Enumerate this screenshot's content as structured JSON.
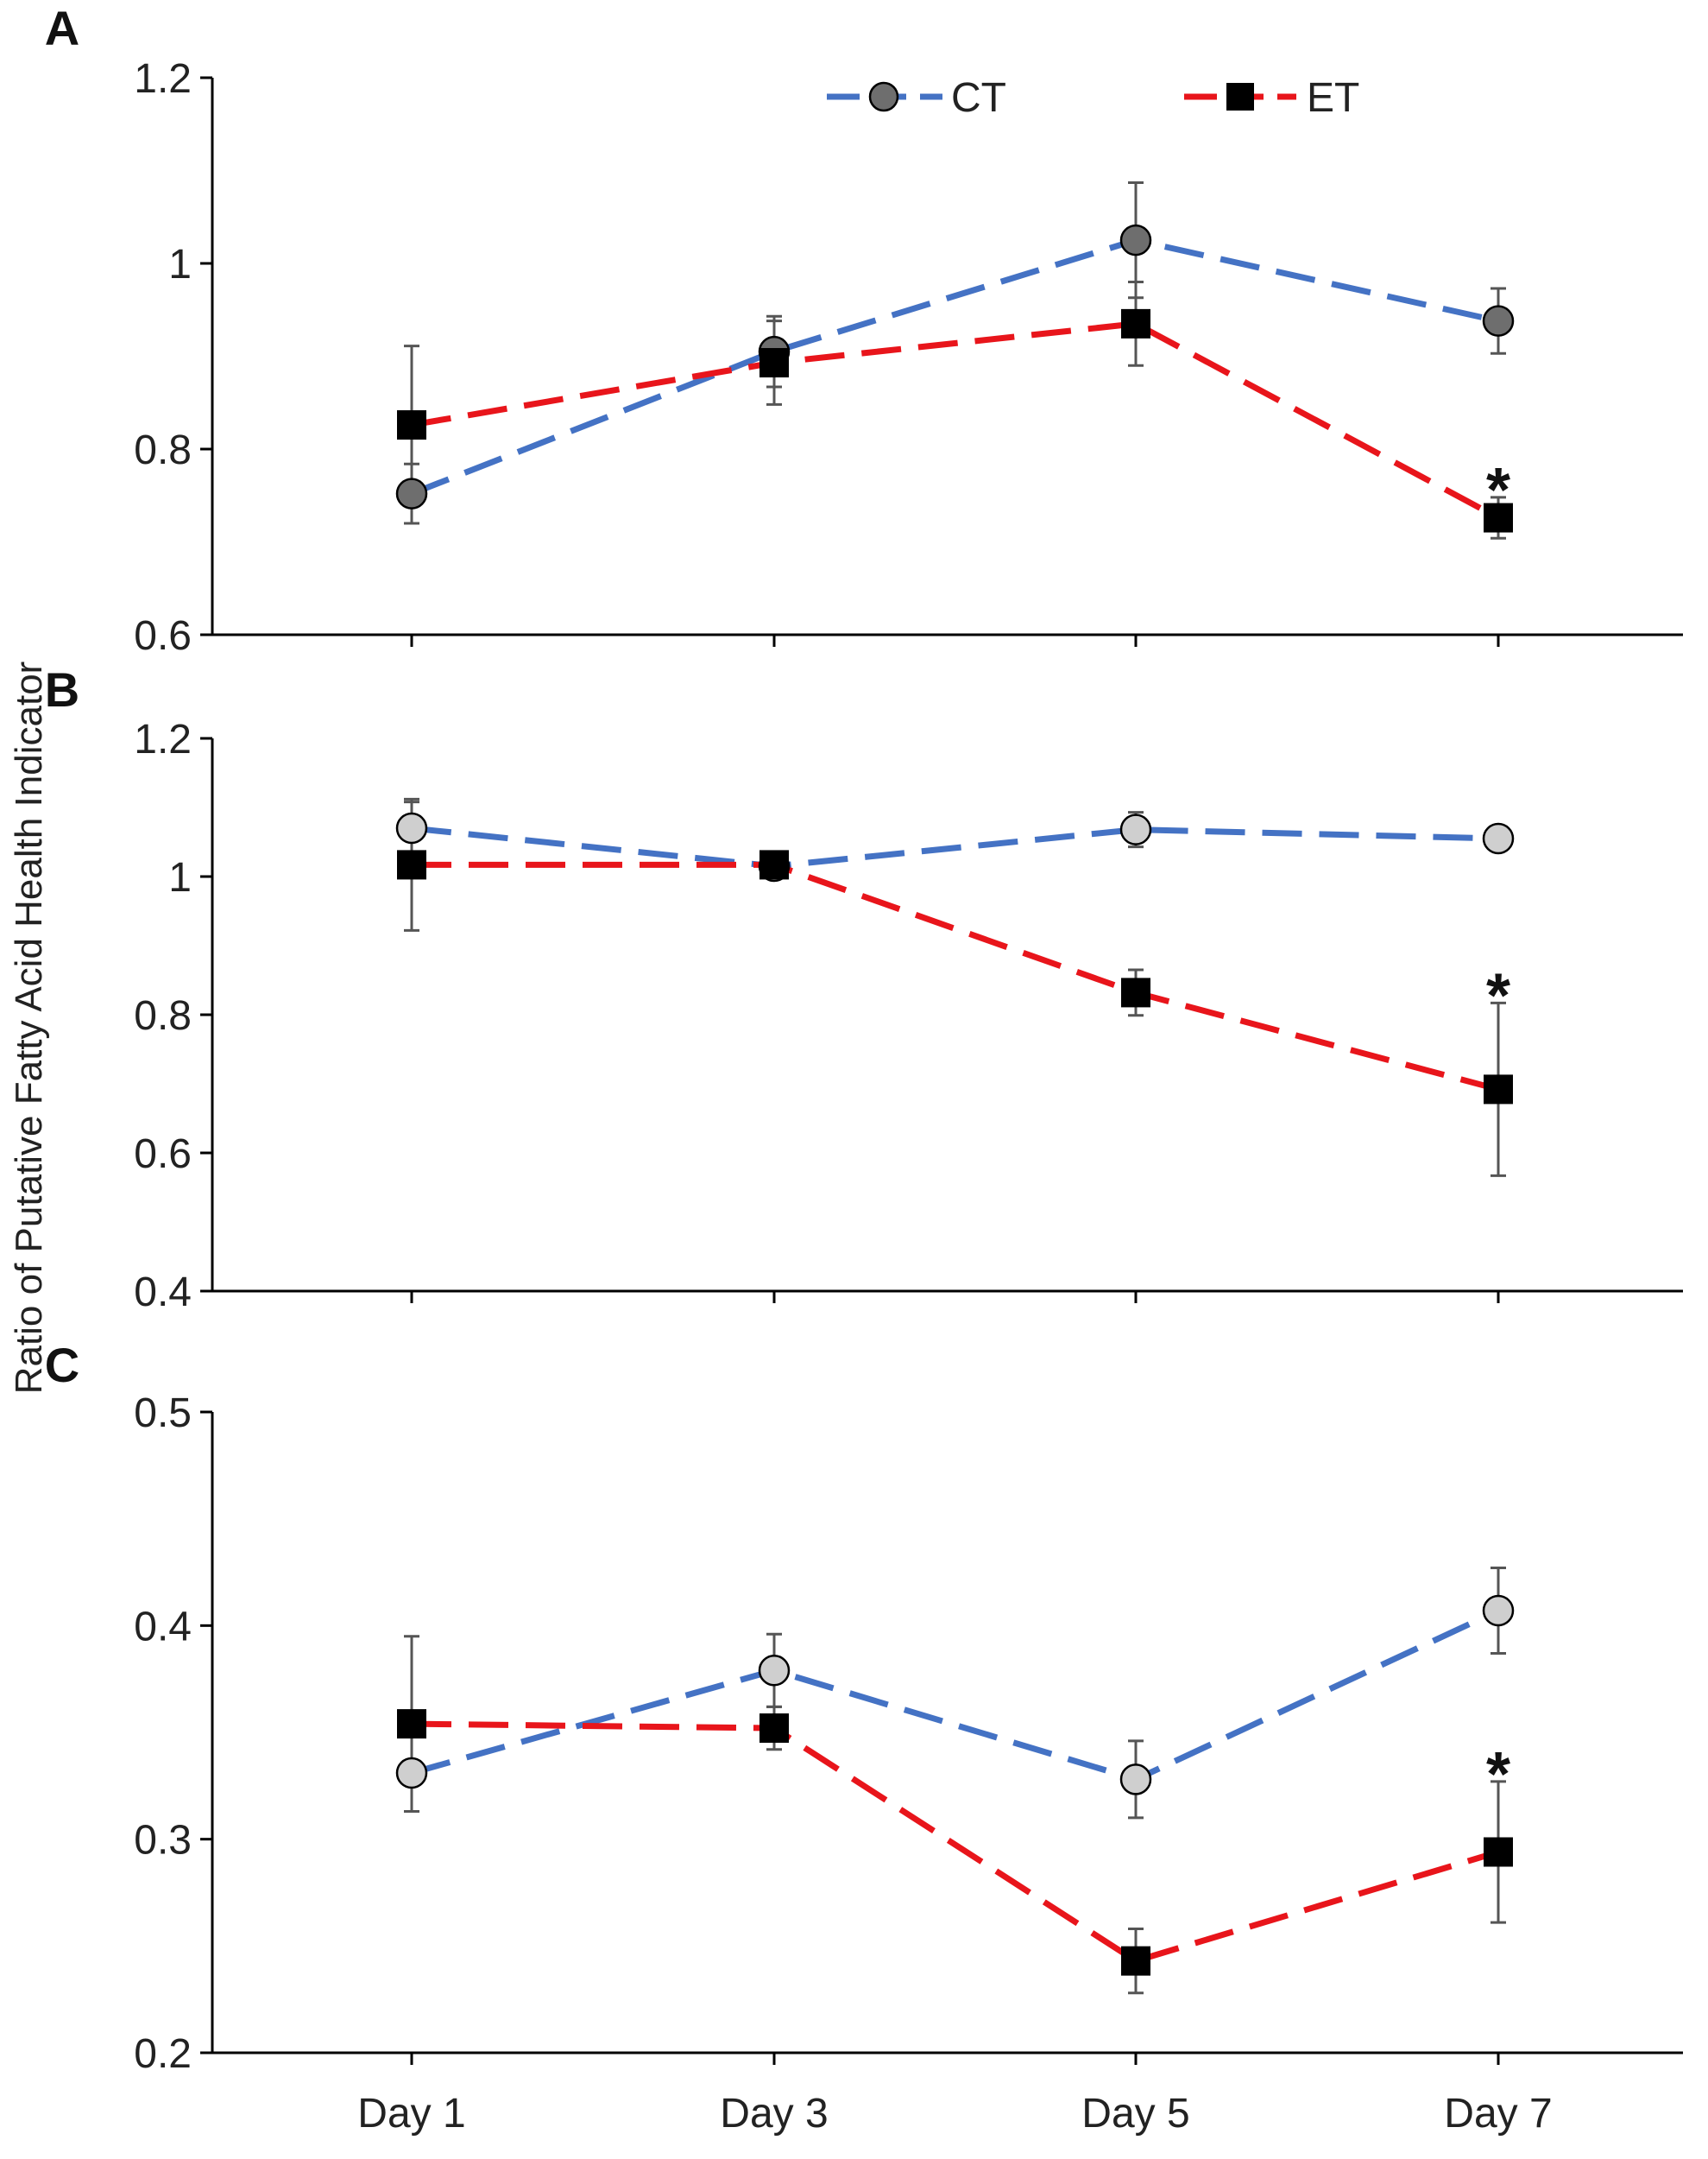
{
  "figure": {
    "ylabel": "Ratio of Putative Fatty Acid Health Indicator"
  },
  "colors": {
    "CT_line": "#4472C4",
    "ET_line": "#E8151B",
    "CT_marker_A": "#6E6E6E",
    "CT_marker_BC": "#CFCFCF",
    "ET_marker": "#000000",
    "axis": "#000000",
    "errorbar": "#555555"
  },
  "legend": {
    "ct_label": "CT",
    "et_label": "ET",
    "ct_icon": "circle-marker-icon",
    "et_icon": "square-marker-icon",
    "placement": "top"
  },
  "chart_data": [
    {
      "panel": "A",
      "type": "line",
      "categories": [
        "Day 1",
        "Day 3",
        "Day 5",
        "Day 7"
      ],
      "ylim": [
        0.6,
        1.2
      ],
      "yticks": [
        "0.6",
        "0.8",
        "1",
        "1.2"
      ],
      "grid": false,
      "series": [
        {
          "name": "CT",
          "values": [
            0.752,
            0.905,
            1.025,
            0.938
          ],
          "errors": [
            0.032,
            0.038,
            0.062,
            0.035
          ]
        },
        {
          "name": "ET",
          "values": [
            0.826,
            0.893,
            0.935,
            0.726
          ],
          "errors": [
            0.085,
            0.045,
            0.045,
            0.022
          ]
        }
      ],
      "annotations": [
        {
          "text": "*",
          "category": "Day 7"
        }
      ]
    },
    {
      "panel": "B",
      "type": "line",
      "categories": [
        "Day 1",
        "Day 3",
        "Day 5",
        "Day 7"
      ],
      "ylim": [
        0.4,
        1.2
      ],
      "yticks": [
        "0.4",
        "0.6",
        "0.8",
        "1",
        "1.2"
      ],
      "grid": false,
      "series": [
        {
          "name": "CT",
          "values": [
            1.07,
            1.015,
            1.068,
            1.055
          ],
          "errors": [
            0.038,
            0.01,
            0.025,
            0.008
          ]
        },
        {
          "name": "ET",
          "values": [
            1.017,
            1.017,
            0.832,
            0.692
          ],
          "errors": [
            0.095,
            0.01,
            0.033,
            0.125
          ]
        }
      ],
      "annotations": [
        {
          "text": "*",
          "category": "Day 7"
        }
      ]
    },
    {
      "panel": "C",
      "type": "line",
      "categories": [
        "Day 1",
        "Day 3",
        "Day 5",
        "Day 7"
      ],
      "ylim": [
        0.2,
        0.5
      ],
      "yticks": [
        "0.2",
        "0.3",
        "0.4",
        "0.5"
      ],
      "grid": false,
      "series": [
        {
          "name": "CT",
          "values": [
            0.331,
            0.379,
            0.328,
            0.407
          ],
          "errors": [
            0.018,
            0.017,
            0.018,
            0.02
          ]
        },
        {
          "name": "ET",
          "values": [
            0.354,
            0.352,
            0.243,
            0.294
          ],
          "errors": [
            0.041,
            0.01,
            0.015,
            0.033
          ]
        }
      ],
      "annotations": [
        {
          "text": "*",
          "category": "Day 7"
        }
      ]
    }
  ]
}
